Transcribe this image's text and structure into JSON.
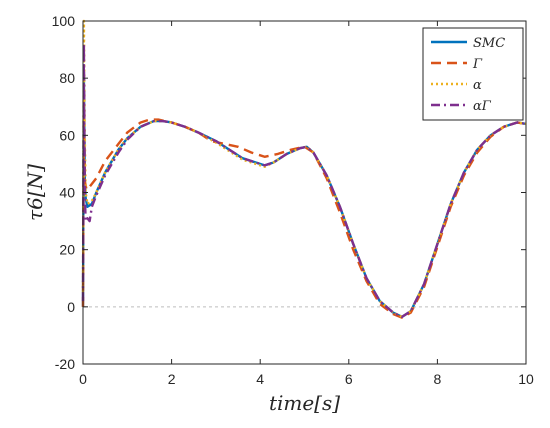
{
  "chart_data": {
    "type": "line",
    "title": "",
    "xlabel": "time[s]",
    "ylabel": "τ6[N]",
    "xlim": [
      0,
      10
    ],
    "ylim": [
      -20,
      100
    ],
    "x_ticks": [
      0,
      2,
      4,
      6,
      8,
      10
    ],
    "y_ticks": [
      -20,
      0,
      20,
      40,
      60,
      80,
      100
    ],
    "x_tick_labels": [
      "0",
      "2",
      "4",
      "6",
      "8",
      "10"
    ],
    "y_tick_labels": [
      "-20",
      "0",
      "20",
      "40",
      "60",
      "80",
      "100"
    ],
    "grid": false,
    "reference_line_y": 0,
    "legend_position": "top-right",
    "series": [
      {
        "name": "SMC",
        "color": "#0072BD",
        "style": "solid",
        "points": [
          [
            0,
            0
          ],
          [
            0.02,
            80
          ],
          [
            0.04,
            45
          ],
          [
            0.06,
            38
          ],
          [
            0.1,
            35
          ],
          [
            0.2,
            36
          ],
          [
            0.3,
            40
          ],
          [
            0.5,
            47
          ],
          [
            0.8,
            55
          ],
          [
            1.0,
            59
          ],
          [
            1.3,
            63
          ],
          [
            1.6,
            65
          ],
          [
            1.8,
            65
          ],
          [
            2.0,
            64.5
          ],
          [
            2.3,
            63
          ],
          [
            2.6,
            61
          ],
          [
            3.0,
            58
          ],
          [
            3.3,
            55
          ],
          [
            3.6,
            52
          ],
          [
            3.9,
            50.5
          ],
          [
            4.1,
            49.5
          ],
          [
            4.3,
            50.5
          ],
          [
            4.6,
            53.5
          ],
          [
            4.9,
            55.5
          ],
          [
            5.05,
            56
          ],
          [
            5.2,
            54
          ],
          [
            5.5,
            46
          ],
          [
            5.8,
            35
          ],
          [
            6.1,
            22
          ],
          [
            6.4,
            10
          ],
          [
            6.7,
            2
          ],
          [
            7.0,
            -2
          ],
          [
            7.2,
            -3.5
          ],
          [
            7.4,
            -1.5
          ],
          [
            7.7,
            8
          ],
          [
            8.0,
            22
          ],
          [
            8.3,
            36
          ],
          [
            8.6,
            47
          ],
          [
            8.9,
            55
          ],
          [
            9.2,
            60
          ],
          [
            9.5,
            63
          ],
          [
            9.8,
            64.5
          ],
          [
            10,
            64
          ]
        ]
      },
      {
        "name": "Γ",
        "color": "#D95319",
        "style": "dashed",
        "points": [
          [
            0,
            0
          ],
          [
            0.02,
            70
          ],
          [
            0.04,
            44
          ],
          [
            0.08,
            41
          ],
          [
            0.15,
            42
          ],
          [
            0.3,
            45
          ],
          [
            0.5,
            51
          ],
          [
            0.8,
            57
          ],
          [
            1.0,
            61
          ],
          [
            1.3,
            64.5
          ],
          [
            1.5,
            65.5
          ],
          [
            1.7,
            65.5
          ],
          [
            2.0,
            64.5
          ],
          [
            2.3,
            63
          ],
          [
            2.6,
            61
          ],
          [
            2.9,
            58
          ],
          [
            3.2,
            57
          ],
          [
            3.5,
            56
          ],
          [
            3.8,
            54
          ],
          [
            4.1,
            52.5
          ],
          [
            4.4,
            53.5
          ],
          [
            4.7,
            55
          ],
          [
            5.0,
            56
          ],
          [
            5.2,
            54
          ],
          [
            5.5,
            45
          ],
          [
            5.8,
            33
          ],
          [
            6.1,
            20
          ],
          [
            6.4,
            9
          ],
          [
            6.7,
            1
          ],
          [
            7.0,
            -2.5
          ],
          [
            7.2,
            -3.8
          ],
          [
            7.4,
            -2
          ],
          [
            7.7,
            7
          ],
          [
            8.0,
            21
          ],
          [
            8.3,
            35
          ],
          [
            8.6,
            46
          ],
          [
            8.9,
            54
          ],
          [
            9.2,
            59.5
          ],
          [
            9.5,
            63
          ],
          [
            9.8,
            64.5
          ],
          [
            10,
            64
          ]
        ]
      },
      {
        "name": "α",
        "color": "#EDB120",
        "style": "dotted",
        "points": [
          [
            0,
            5
          ],
          [
            0.02,
            100
          ],
          [
            0.04,
            60
          ],
          [
            0.06,
            40
          ],
          [
            0.1,
            36
          ],
          [
            0.2,
            37
          ],
          [
            0.3,
            40
          ],
          [
            0.5,
            47
          ],
          [
            0.8,
            55
          ],
          [
            1.0,
            59
          ],
          [
            1.3,
            63
          ],
          [
            1.6,
            65
          ],
          [
            1.8,
            65
          ],
          [
            2.0,
            64.5
          ],
          [
            2.3,
            63
          ],
          [
            2.6,
            61
          ],
          [
            3.0,
            57.5
          ],
          [
            3.3,
            54.5
          ],
          [
            3.6,
            51.5
          ],
          [
            3.9,
            50
          ],
          [
            4.1,
            49
          ],
          [
            4.3,
            50.5
          ],
          [
            4.6,
            53.5
          ],
          [
            4.9,
            55.5
          ],
          [
            5.05,
            56
          ],
          [
            5.2,
            54
          ],
          [
            5.5,
            46
          ],
          [
            5.8,
            35
          ],
          [
            6.1,
            22
          ],
          [
            6.4,
            10
          ],
          [
            6.7,
            2
          ],
          [
            7.0,
            -2
          ],
          [
            7.2,
            -3.5
          ],
          [
            7.4,
            -1.5
          ],
          [
            7.7,
            8
          ],
          [
            8.0,
            22
          ],
          [
            8.3,
            36
          ],
          [
            8.6,
            47
          ],
          [
            8.9,
            55
          ],
          [
            9.2,
            60
          ],
          [
            9.5,
            63
          ],
          [
            9.8,
            64.5
          ],
          [
            10,
            64
          ]
        ]
      },
      {
        "name": "αΓ",
        "color": "#7E2F8E",
        "style": "dashdot",
        "points": [
          [
            0,
            2
          ],
          [
            0.02,
            92
          ],
          [
            0.04,
            40
          ],
          [
            0.06,
            30
          ],
          [
            0.1,
            31
          ],
          [
            0.15,
            30
          ],
          [
            0.2,
            35
          ],
          [
            0.3,
            39
          ],
          [
            0.5,
            46
          ],
          [
            0.8,
            54
          ],
          [
            1.0,
            58.5
          ],
          [
            1.3,
            63
          ],
          [
            1.6,
            65
          ],
          [
            1.8,
            65
          ],
          [
            2.0,
            64.5
          ],
          [
            2.3,
            63
          ],
          [
            2.6,
            61
          ],
          [
            3.0,
            58
          ],
          [
            3.3,
            55
          ],
          [
            3.6,
            52
          ],
          [
            3.9,
            50.5
          ],
          [
            4.1,
            49.5
          ],
          [
            4.3,
            50.5
          ],
          [
            4.6,
            53.5
          ],
          [
            4.9,
            55.5
          ],
          [
            5.05,
            56
          ],
          [
            5.2,
            54
          ],
          [
            5.5,
            46
          ],
          [
            5.8,
            35
          ],
          [
            6.1,
            22
          ],
          [
            6.4,
            10
          ],
          [
            6.7,
            2
          ],
          [
            7.0,
            -2
          ],
          [
            7.2,
            -3.5
          ],
          [
            7.4,
            -1.5
          ],
          [
            7.7,
            8
          ],
          [
            8.0,
            22
          ],
          [
            8.3,
            36
          ],
          [
            8.6,
            47
          ],
          [
            8.9,
            55
          ],
          [
            9.2,
            60
          ],
          [
            9.5,
            63
          ],
          [
            9.8,
            64.5
          ],
          [
            10,
            64
          ]
        ]
      }
    ]
  }
}
